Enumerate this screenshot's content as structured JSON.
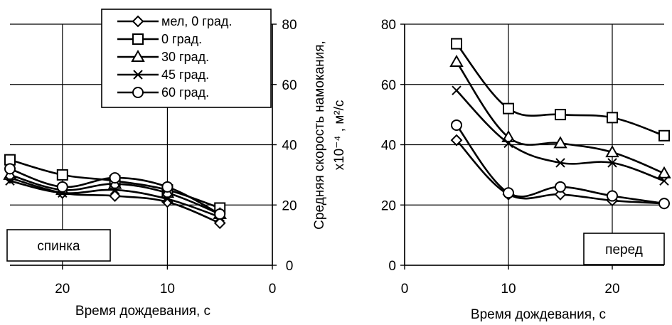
{
  "chart_data": [
    {
      "type": "line",
      "panel_label": "спинка",
      "xlabel": "Время дождевания, с",
      "xlim": [
        25,
        0
      ],
      "ylim": [
        0,
        80
      ],
      "x_ticks": [
        20,
        10,
        0
      ],
      "y_ticks": [
        0,
        20,
        40,
        60,
        80
      ],
      "y_tick_side": "right",
      "grid": true,
      "x": [
        25,
        20,
        15,
        10,
        5
      ],
      "series": [
        {
          "name": "мел, 0 град.",
          "marker": "diamond",
          "values": [
            29,
            24,
            23,
            21,
            14
          ]
        },
        {
          "name": "0 град.",
          "marker": "square",
          "values": [
            35,
            30,
            28,
            25,
            19
          ]
        },
        {
          "name": "30 град.",
          "marker": "triangle",
          "values": [
            30,
            25,
            27,
            24,
            17
          ]
        },
        {
          "name": "45 град.",
          "marker": "cross",
          "values": [
            28,
            24,
            25,
            22,
            16
          ]
        },
        {
          "name": "60 град.",
          "marker": "circle",
          "values": [
            32,
            26,
            29,
            26,
            17
          ]
        }
      ]
    },
    {
      "type": "line",
      "panel_label": "перед",
      "xlabel": "Время дождевания, с",
      "xlim": [
        0,
        25
      ],
      "ylim": [
        0,
        80
      ],
      "x_ticks": [
        0,
        10,
        20
      ],
      "y_ticks": [
        0,
        20,
        40,
        60,
        80
      ],
      "y_tick_side": "left",
      "grid": true,
      "x": [
        5,
        10,
        15,
        20,
        25
      ],
      "series": [
        {
          "name": "мел, 0 град.",
          "marker": "diamond",
          "values": [
            41.5,
            23.5,
            23.5,
            21.5,
            20.5
          ]
        },
        {
          "name": "0 град.",
          "marker": "square",
          "values": [
            73.5,
            52,
            50,
            49,
            43
          ]
        },
        {
          "name": "30 град.",
          "marker": "triangle",
          "values": [
            67.5,
            42.5,
            40.5,
            37.5,
            30.5
          ]
        },
        {
          "name": "45 град.",
          "marker": "cross",
          "values": [
            58,
            40.5,
            34,
            34,
            28
          ]
        },
        {
          "name": "60 град.",
          "marker": "circle",
          "values": [
            46.5,
            24,
            26,
            23,
            20.5
          ]
        }
      ]
    }
  ],
  "shared_ylabel_line1": "Средняя скорость намокания,",
  "shared_ylabel_line2": "x10⁻⁴ , м²/с"
}
